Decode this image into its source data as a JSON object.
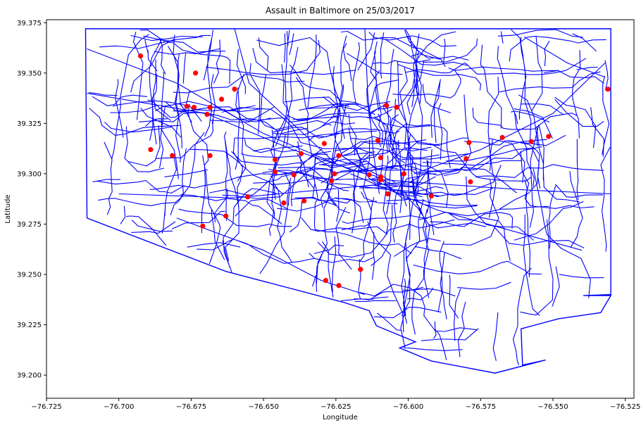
{
  "chart_data": {
    "type": "scatter",
    "title": "Assault in Baltimore on 25/03/2017",
    "xlabel": "Longitude",
    "ylabel": "Latitude",
    "xlim": [
      -76.725,
      -76.522
    ],
    "ylim": [
      39.1885,
      39.3765
    ],
    "grid": false,
    "legend": "none",
    "x_ticks": [
      -76.725,
      -76.7,
      -76.675,
      -76.65,
      -76.625,
      -76.6,
      -76.575,
      -76.55,
      -76.525
    ],
    "x_tick_labels": [
      "−76.725",
      "−76.700",
      "−76.675",
      "−76.650",
      "−76.625",
      "−76.600",
      "−76.575",
      "−76.550",
      "−76.525"
    ],
    "y_ticks": [
      39.2,
      39.225,
      39.25,
      39.275,
      39.3,
      39.325,
      39.35,
      39.375
    ],
    "y_tick_labels": [
      "39.200",
      "39.225",
      "39.250",
      "39.275",
      "39.300",
      "39.325",
      "39.350",
      "39.375"
    ],
    "map_color": "#0000ff",
    "point_color": "#ff0000",
    "boundary": [
      [
        -76.7115,
        39.372
      ],
      [
        -76.53,
        39.372
      ],
      [
        -76.53,
        39.24
      ],
      [
        -76.5395,
        39.2395
      ],
      [
        -76.5325,
        39.2395
      ],
      [
        -76.53,
        39.2395
      ],
      [
        -76.5335,
        39.231
      ],
      [
        -76.548,
        39.228
      ],
      [
        -76.561,
        39.223
      ],
      [
        -76.5605,
        39.205
      ],
      [
        -76.5525,
        39.2075
      ],
      [
        -76.57,
        39.201
      ],
      [
        -76.592,
        39.207
      ],
      [
        -76.603,
        39.2135
      ],
      [
        -76.5975,
        39.2165
      ],
      [
        -76.611,
        39.2245
      ],
      [
        -76.6135,
        39.232
      ],
      [
        -76.622,
        39.236
      ],
      [
        -76.663,
        39.2515
      ],
      [
        -76.711,
        39.278
      ],
      [
        -76.7115,
        39.372
      ]
    ],
    "points": [
      {
        "x": -76.6925,
        "y": 39.3585
      },
      {
        "x": -76.6735,
        "y": 39.35
      },
      {
        "x": -76.66,
        "y": 39.342
      },
      {
        "x": -76.6645,
        "y": 39.337
      },
      {
        "x": -76.6765,
        "y": 39.3335
      },
      {
        "x": -76.674,
        "y": 39.333
      },
      {
        "x": -76.6685,
        "y": 39.333
      },
      {
        "x": -76.6695,
        "y": 39.3295
      },
      {
        "x": -76.6075,
        "y": 39.334
      },
      {
        "x": -76.604,
        "y": 39.333
      },
      {
        "x": -76.531,
        "y": 39.342
      },
      {
        "x": -76.689,
        "y": 39.312
      },
      {
        "x": -76.6815,
        "y": 39.309
      },
      {
        "x": -76.6685,
        "y": 39.309
      },
      {
        "x": -76.629,
        "y": 39.315
      },
      {
        "x": -76.637,
        "y": 39.31
      },
      {
        "x": -76.624,
        "y": 39.309
      },
      {
        "x": -76.6105,
        "y": 39.3165
      },
      {
        "x": -76.6095,
        "y": 39.308
      },
      {
        "x": -76.579,
        "y": 39.3155
      },
      {
        "x": -76.5675,
        "y": 39.318
      },
      {
        "x": -76.5575,
        "y": 39.316
      },
      {
        "x": -76.5515,
        "y": 39.3185
      },
      {
        "x": -76.58,
        "y": 39.3075
      },
      {
        "x": -76.646,
        "y": 39.307
      },
      {
        "x": -76.646,
        "y": 39.301
      },
      {
        "x": -76.6395,
        "y": 39.2995
      },
      {
        "x": -76.6255,
        "y": 39.3
      },
      {
        "x": -76.6265,
        "y": 39.2965
      },
      {
        "x": -76.6135,
        "y": 39.2995
      },
      {
        "x": -76.6095,
        "y": 39.2985
      },
      {
        "x": -76.6095,
        "y": 39.297
      },
      {
        "x": -76.6015,
        "y": 39.3
      },
      {
        "x": -76.5785,
        "y": 39.296
      },
      {
        "x": -76.607,
        "y": 39.29
      },
      {
        "x": -76.592,
        "y": 39.289
      },
      {
        "x": -76.6555,
        "y": 39.2885
      },
      {
        "x": -76.643,
        "y": 39.2855
      },
      {
        "x": -76.636,
        "y": 39.2865
      },
      {
        "x": -76.663,
        "y": 39.279
      },
      {
        "x": -76.671,
        "y": 39.274
      },
      {
        "x": -76.6165,
        "y": 39.2525
      },
      {
        "x": -76.6285,
        "y": 39.247
      },
      {
        "x": -76.624,
        "y": 39.2445
      }
    ]
  }
}
